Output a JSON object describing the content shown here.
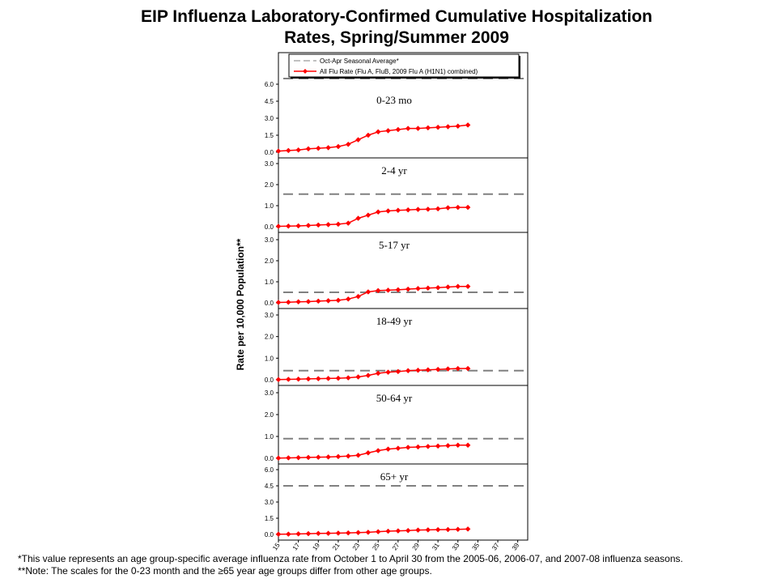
{
  "title": {
    "line1": "EIP Influenza Laboratory-Confirmed Cumulative Hospitalization",
    "line2": "Rates, Spring/Summer 2009"
  },
  "footnotes": {
    "note1": "*This value represents an age group-specific average influenza rate from October 1 to April 30 from the 2005-06, 2006-07, and 2007-08 influenza seasons.",
    "note2": "**Note: The scales for the 0-23 month and the ≥65 year age groups differ from other age groups."
  },
  "chart_data": {
    "type": "line",
    "ylabel": "Rate per 10,000 Population**",
    "xlabel": "",
    "x_ticks": [
      "15",
      "17",
      "19",
      "21",
      "23",
      "25",
      "27",
      "29",
      "31",
      "33",
      "35",
      "37",
      "39"
    ],
    "xlim": [
      15,
      40
    ],
    "weeks": [
      15,
      16,
      17,
      18,
      19,
      20,
      21,
      22,
      23,
      24,
      25,
      26,
      27,
      28,
      29,
      30,
      31,
      32,
      33,
      34
    ],
    "grid": false,
    "legend": {
      "position": "top",
      "entries": [
        "Oct-Apr Seasonal Average*",
        "All Flu Rate (Flu A, FluB, 2009 Flu A (H1N1) combined)"
      ]
    },
    "colors": {
      "series": "#ff0000",
      "average": "#808080",
      "axis": "#000000"
    },
    "panels": [
      {
        "label": "0-23 mo",
        "ylim": [
          0,
          7.0
        ],
        "y_ticks": [
          "0.0",
          "1.5",
          "3.0",
          "4.5",
          "6.0"
        ],
        "seasonal_average": 6.5,
        "values": [
          0.1,
          0.15,
          0.2,
          0.3,
          0.35,
          0.4,
          0.5,
          0.7,
          1.1,
          1.5,
          1.8,
          1.9,
          2.0,
          2.1,
          2.1,
          2.15,
          2.2,
          2.25,
          2.3,
          2.4
        ]
      },
      {
        "label": "2-4 yr",
        "ylim": [
          0,
          3.0
        ],
        "y_ticks": [
          "0.0",
          "1.0",
          "2.0",
          "3.0"
        ],
        "seasonal_average": 1.55,
        "values": [
          0.02,
          0.03,
          0.04,
          0.06,
          0.08,
          0.1,
          0.12,
          0.17,
          0.4,
          0.55,
          0.7,
          0.75,
          0.78,
          0.8,
          0.82,
          0.83,
          0.85,
          0.9,
          0.92,
          0.92
        ]
      },
      {
        "label": "5-17 yr",
        "ylim": [
          0,
          3.0
        ],
        "y_ticks": [
          "0.0",
          "1.0",
          "2.0",
          "3.0"
        ],
        "seasonal_average": 0.5,
        "values": [
          0.02,
          0.03,
          0.05,
          0.06,
          0.08,
          0.1,
          0.12,
          0.18,
          0.3,
          0.52,
          0.58,
          0.6,
          0.62,
          0.65,
          0.68,
          0.7,
          0.72,
          0.75,
          0.78,
          0.78
        ]
      },
      {
        "label": "18-49 yr",
        "ylim": [
          0,
          3.0
        ],
        "y_ticks": [
          "0.0",
          "1.0",
          "2.0",
          "3.0"
        ],
        "seasonal_average": 0.42,
        "values": [
          0.01,
          0.02,
          0.03,
          0.04,
          0.05,
          0.06,
          0.07,
          0.09,
          0.13,
          0.2,
          0.3,
          0.35,
          0.38,
          0.42,
          0.44,
          0.46,
          0.48,
          0.5,
          0.52,
          0.52
        ]
      },
      {
        "label": "50-64 yr",
        "ylim": [
          0,
          3.0
        ],
        "y_ticks": [
          "0.0",
          "1.0",
          "2.0",
          "3.0"
        ],
        "seasonal_average": 0.9,
        "values": [
          0.01,
          0.02,
          0.03,
          0.04,
          0.05,
          0.06,
          0.08,
          0.1,
          0.14,
          0.25,
          0.35,
          0.42,
          0.46,
          0.5,
          0.52,
          0.54,
          0.56,
          0.58,
          0.6,
          0.6
        ]
      },
      {
        "label": "65+ yr",
        "ylim": [
          0,
          6.0
        ],
        "y_ticks": [
          "0.0",
          "1.5",
          "3.0",
          "4.5",
          "6.0"
        ],
        "seasonal_average": 4.5,
        "values": [
          0.02,
          0.03,
          0.05,
          0.07,
          0.09,
          0.1,
          0.12,
          0.14,
          0.17,
          0.2,
          0.25,
          0.3,
          0.33,
          0.36,
          0.4,
          0.42,
          0.44,
          0.45,
          0.47,
          0.5
        ]
      }
    ]
  }
}
